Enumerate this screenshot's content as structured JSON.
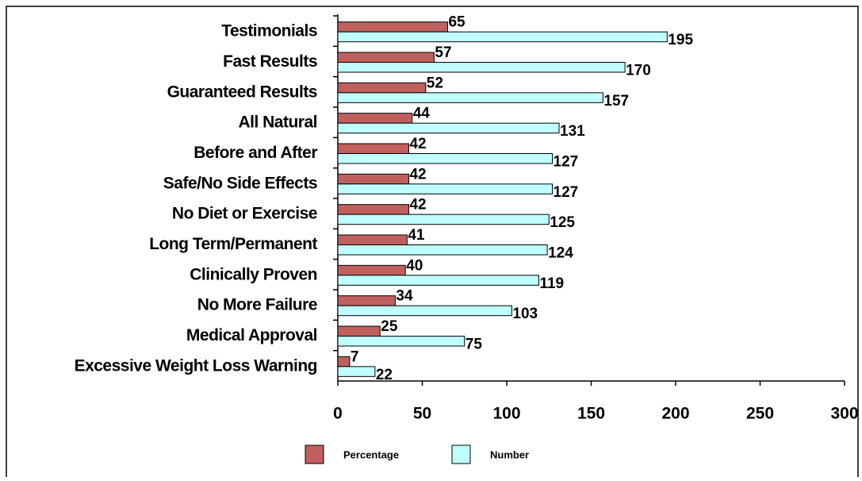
{
  "chart_data": {
    "type": "bar",
    "orientation": "horizontal",
    "categories": [
      "Testimonials",
      "Fast Results",
      "Guaranteed Results",
      "All Natural",
      "Before and After",
      "Safe/No Side Effects",
      "No Diet or Exercise",
      "Long Term/Permanent",
      "Clinically Proven",
      "No More Failure",
      "Medical Approval",
      "Excessive Weight Loss Warning"
    ],
    "series": [
      {
        "name": "Percentage",
        "color": "#c0605e",
        "values": [
          65,
          57,
          52,
          44,
          42,
          42,
          42,
          41,
          40,
          34,
          25,
          7
        ]
      },
      {
        "name": "Number",
        "color": "#c0ffff",
        "values": [
          195,
          170,
          157,
          131,
          127,
          127,
          125,
          124,
          119,
          103,
          75,
          22
        ]
      }
    ],
    "xlim": [
      0,
      300
    ],
    "xticks": [
      0,
      50,
      100,
      150,
      200,
      250,
      300
    ],
    "legend": "bottom"
  }
}
